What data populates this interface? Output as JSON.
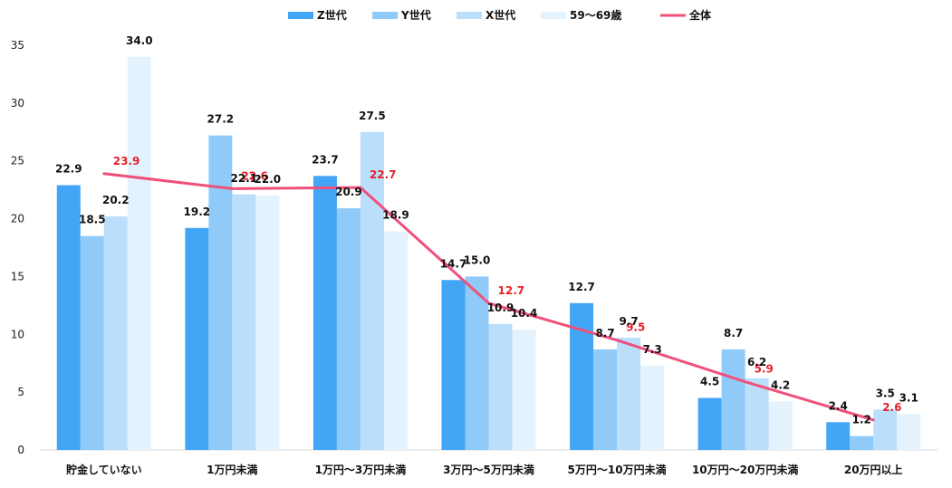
{
  "chart_data": {
    "type": "bar",
    "categories": [
      "貯金していない",
      "1万円未満",
      "1万円～3万円未満",
      "3万円～5万円未満",
      "5万円～10万円未満",
      "10万円～20万円未満",
      "20万円以上"
    ],
    "series": [
      {
        "name": "Z世代",
        "color": "#42a5f5",
        "values": [
          22.9,
          19.2,
          23.7,
          14.7,
          12.7,
          4.5,
          2.4
        ]
      },
      {
        "name": "Y世代",
        "color": "#90caf9",
        "values": [
          18.5,
          27.2,
          20.9,
          15.0,
          8.7,
          8.7,
          1.2
        ]
      },
      {
        "name": "X世代",
        "color": "#bbdefb",
        "values": [
          20.2,
          22.1,
          27.5,
          10.9,
          9.7,
          6.2,
          3.5
        ]
      },
      {
        "name": "59～69歳",
        "color": "#e3f2fd",
        "values": [
          34.0,
          22.0,
          18.9,
          10.4,
          7.3,
          4.2,
          3.1
        ]
      }
    ],
    "line": {
      "name": "全体",
      "color": "#f0507a",
      "label_color": "#e8202a",
      "values": [
        23.9,
        22.6,
        22.7,
        12.7,
        9.5,
        5.9,
        2.6
      ]
    },
    "y_ticks": [
      "0",
      "5",
      "10",
      "15",
      "20",
      "25",
      "30",
      "35"
    ],
    "ylim": [
      0,
      35
    ],
    "grid": false,
    "legend_position": "top-center"
  }
}
